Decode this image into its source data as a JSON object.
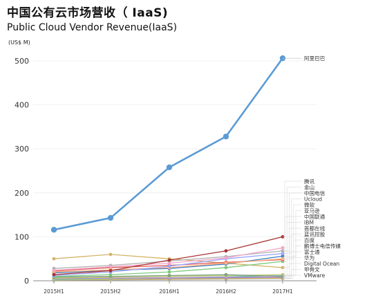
{
  "title": "中国公有云市场营收（ IaaS)",
  "subtitle": "Public Cloud Vendor Revenue(IaaS)",
  "unit_label": "(US$ M)",
  "chart_data": {
    "type": "line",
    "title": "中国公有云市场营收（ IaaS)",
    "subtitle": "Public Cloud Vendor Revenue(IaaS)",
    "ylabel": "(US$ M)",
    "x": [
      "2015H1",
      "2015H2",
      "2016H1",
      "2016H2",
      "2017H1"
    ],
    "ylim": [
      0,
      500
    ],
    "yticks": [
      0,
      100,
      200,
      300,
      400,
      500
    ],
    "grid": "horizontal",
    "legend": "right, labels stacked beside end points",
    "series": [
      {
        "name": "阿里巴巴",
        "color": "#5b9bd5",
        "values": [
          116,
          143,
          258,
          328,
          506
        ]
      },
      {
        "name": "腾讯",
        "color": "#a83232",
        "values": [
          14,
          23,
          47,
          68,
          100
        ]
      },
      {
        "name": "金山",
        "color": "#f2a6c8",
        "values": [
          24,
          32,
          40,
          52,
          75
        ]
      },
      {
        "name": "中国电信",
        "color": "#b0b0b0",
        "values": [
          28,
          35,
          45,
          55,
          68
        ]
      },
      {
        "name": "Ucloud",
        "color": "#9aa8ff",
        "values": [
          12,
          20,
          33,
          50,
          62
        ]
      },
      {
        "name": "微软",
        "color": "#ffb07c",
        "values": [
          20,
          25,
          30,
          40,
          50
        ]
      },
      {
        "name": "亚马逊",
        "color": "#3a7dc7",
        "values": [
          18,
          24,
          28,
          38,
          56
        ]
      },
      {
        "name": "中国联通",
        "color": "#e05a5a",
        "values": [
          22,
          30,
          35,
          42,
          48
        ]
      },
      {
        "name": "IBM",
        "color": "#7ec97e",
        "values": [
          10,
          14,
          20,
          30,
          44
        ]
      },
      {
        "name": "首都在线",
        "color": "#d4b46a",
        "values": [
          50,
          60,
          50,
          40,
          30
        ]
      },
      {
        "name": "蓝讯控股",
        "color": "#7fa37f",
        "values": [
          8,
          10,
          12,
          14,
          10
        ]
      },
      {
        "name": "百度",
        "color": "#c8c870",
        "values": [
          6,
          8,
          10,
          12,
          14
        ]
      },
      {
        "name": "鹏博士电信传媒",
        "color": "#8fc1d6",
        "values": [
          9,
          10,
          11,
          12,
          12
        ]
      },
      {
        "name": "富士通",
        "color": "#b78fd6",
        "values": [
          5,
          6,
          7,
          8,
          9
        ]
      },
      {
        "name": "华为",
        "color": "#6bbf9e",
        "values": [
          3,
          5,
          7,
          9,
          12
        ]
      },
      {
        "name": "Digital Ocean",
        "color": "#7f7fbf",
        "values": [
          4,
          5,
          6,
          7,
          8
        ]
      },
      {
        "name": "甲骨文",
        "color": "#e0c060",
        "values": [
          2,
          3,
          4,
          5,
          6
        ]
      },
      {
        "name": "VMware",
        "color": "#999999",
        "values": [
          1,
          2,
          3,
          4,
          5
        ]
      }
    ]
  }
}
